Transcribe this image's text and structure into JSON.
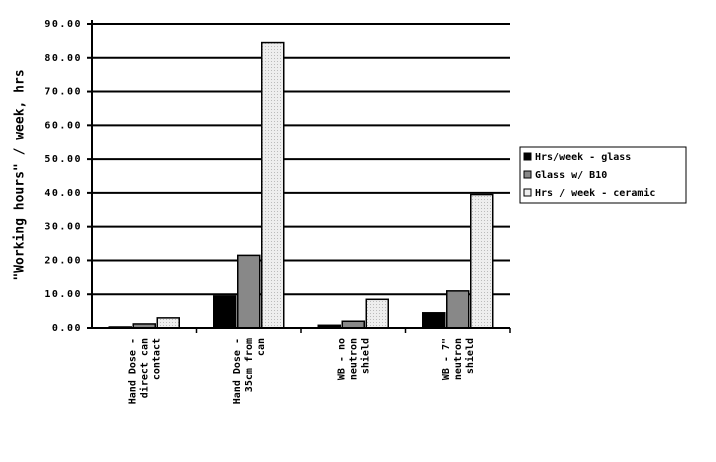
{
  "chart_data": {
    "type": "bar",
    "ylabel": "\"Working hours\" / week, hrs",
    "categories": [
      [
        "Hand Dose -",
        "direct can",
        "contact"
      ],
      [
        "Hand Dose -",
        "35cm from",
        "can"
      ],
      [
        "WB - no",
        "neutron",
        "shield"
      ],
      [
        "WB - 7\"",
        "neutron",
        "shield"
      ]
    ],
    "series": [
      {
        "name": "Hrs/week - glass",
        "color": "#000000",
        "values": [
          0.3,
          9.5,
          0.8,
          4.5
        ]
      },
      {
        "name": "Glass w/ B10",
        "color": "#888888",
        "values": [
          1.2,
          21.5,
          2.0,
          11.0
        ]
      },
      {
        "name": "Hrs / week - ceramic",
        "color": "#eeeeee",
        "values": [
          3.0,
          84.5,
          8.5,
          39.5
        ]
      }
    ],
    "ylim": [
      0,
      90
    ],
    "yticks": [
      {
        "value": 0,
        "label": "0.00"
      },
      {
        "value": 10,
        "label": "10.00"
      },
      {
        "value": 20,
        "label": "20.00"
      },
      {
        "value": 30,
        "label": "30.00"
      },
      {
        "value": 40,
        "label": "40.00"
      },
      {
        "value": 50,
        "label": "50.00"
      },
      {
        "value": 60,
        "label": "60.00"
      },
      {
        "value": 70,
        "label": "70.00"
      },
      {
        "value": 80,
        "label": "80.00"
      },
      {
        "value": 90,
        "label": "90.00"
      }
    ],
    "grid": true,
    "legend": "right"
  }
}
